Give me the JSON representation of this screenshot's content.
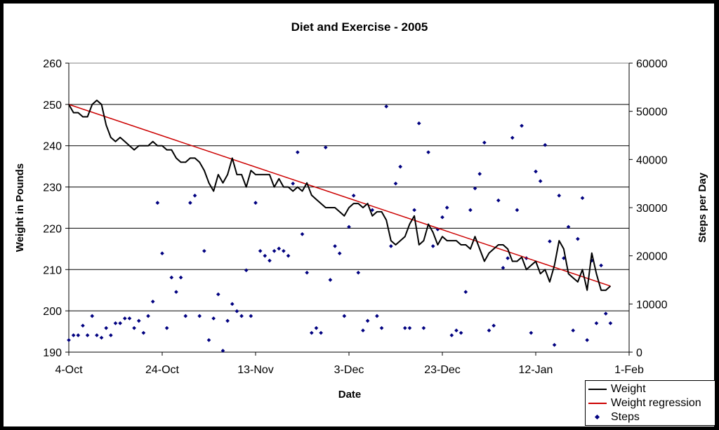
{
  "chart_data": {
    "type": "line",
    "title": "Diet and Exercise - 2005",
    "xlabel": "Date",
    "ylabel": "Weight in Pounds",
    "y2label": "Steps per Day",
    "x_start": "2005-10-04",
    "x_end": "2006-02-01",
    "x_ticks": [
      {
        "date": "2005-10-04",
        "label": "4-Oct"
      },
      {
        "date": "2005-10-24",
        "label": "24-Oct"
      },
      {
        "date": "2005-11-13",
        "label": "13-Nov"
      },
      {
        "date": "2005-12-03",
        "label": "3-Dec"
      },
      {
        "date": "2005-12-23",
        "label": "23-Dec"
      },
      {
        "date": "2006-01-12",
        "label": "12-Jan"
      },
      {
        "date": "2006-02-01",
        "label": "1-Feb"
      }
    ],
    "ylim": [
      190,
      260
    ],
    "y_ticks": [
      "190",
      "200",
      "210",
      "220",
      "230",
      "240",
      "250",
      "260"
    ],
    "y2lim": [
      0,
      60000
    ],
    "y2_ticks": [
      "0",
      "10000",
      "20000",
      "30000",
      "40000",
      "50000",
      "60000"
    ],
    "grid": true,
    "legend_position": "bottom-right",
    "colors": {
      "weight": "#000000",
      "regression": "#cc0000",
      "steps": "#000080"
    },
    "series": [
      {
        "name": "Weight",
        "axis": "left",
        "points": [
          [
            "2005-10-04",
            250
          ],
          [
            "2005-10-05",
            248
          ],
          [
            "2005-10-06",
            248
          ],
          [
            "2005-10-07",
            247
          ],
          [
            "2005-10-08",
            247
          ],
          [
            "2005-10-09",
            250
          ],
          [
            "2005-10-10",
            251
          ],
          [
            "2005-10-11",
            250
          ],
          [
            "2005-10-12",
            245
          ],
          [
            "2005-10-13",
            242
          ],
          [
            "2005-10-14",
            241
          ],
          [
            "2005-10-15",
            242
          ],
          [
            "2005-10-16",
            241
          ],
          [
            "2005-10-17",
            240
          ],
          [
            "2005-10-18",
            239
          ],
          [
            "2005-10-19",
            240
          ],
          [
            "2005-10-20",
            240
          ],
          [
            "2005-10-21",
            240
          ],
          [
            "2005-10-22",
            241
          ],
          [
            "2005-10-23",
            240
          ],
          [
            "2005-10-24",
            240
          ],
          [
            "2005-10-25",
            239
          ],
          [
            "2005-10-26",
            239
          ],
          [
            "2005-10-27",
            237
          ],
          [
            "2005-10-28",
            236
          ],
          [
            "2005-10-29",
            236
          ],
          [
            "2005-10-30",
            237
          ],
          [
            "2005-10-31",
            237
          ],
          [
            "2005-11-01",
            236
          ],
          [
            "2005-11-02",
            234
          ],
          [
            "2005-11-03",
            231
          ],
          [
            "2005-11-04",
            229
          ],
          [
            "2005-11-05",
            233
          ],
          [
            "2005-11-06",
            231
          ],
          [
            "2005-11-07",
            233
          ],
          [
            "2005-11-08",
            237
          ],
          [
            "2005-11-09",
            233
          ],
          [
            "2005-11-10",
            233
          ],
          [
            "2005-11-11",
            230
          ],
          [
            "2005-11-12",
            234
          ],
          [
            "2005-11-13",
            233
          ],
          [
            "2005-11-14",
            233
          ],
          [
            "2005-11-15",
            233
          ],
          [
            "2005-11-16",
            233
          ],
          [
            "2005-11-17",
            230
          ],
          [
            "2005-11-18",
            232
          ],
          [
            "2005-11-19",
            230
          ],
          [
            "2005-11-20",
            230
          ],
          [
            "2005-11-21",
            229
          ],
          [
            "2005-11-22",
            230
          ],
          [
            "2005-11-23",
            229
          ],
          [
            "2005-11-24",
            231
          ],
          [
            "2005-11-25",
            228
          ],
          [
            "2005-11-26",
            227
          ],
          [
            "2005-11-27",
            226
          ],
          [
            "2005-11-28",
            225
          ],
          [
            "2005-11-29",
            225
          ],
          [
            "2005-11-30",
            225
          ],
          [
            "2005-12-01",
            224
          ],
          [
            "2005-12-02",
            223
          ],
          [
            "2005-12-03",
            225
          ],
          [
            "2005-12-04",
            226
          ],
          [
            "2005-12-05",
            226
          ],
          [
            "2005-12-06",
            225
          ],
          [
            "2005-12-07",
            226
          ],
          [
            "2005-12-08",
            223
          ],
          [
            "2005-12-09",
            224
          ],
          [
            "2005-12-10",
            224
          ],
          [
            "2005-12-11",
            222
          ],
          [
            "2005-12-12",
            217
          ],
          [
            "2005-12-13",
            216
          ],
          [
            "2005-12-14",
            217
          ],
          [
            "2005-12-15",
            218
          ],
          [
            "2005-12-16",
            221
          ],
          [
            "2005-12-17",
            223
          ],
          [
            "2005-12-18",
            216
          ],
          [
            "2005-12-19",
            217
          ],
          [
            "2005-12-20",
            221
          ],
          [
            "2005-12-21",
            219
          ],
          [
            "2005-12-22",
            216
          ],
          [
            "2005-12-23",
            218
          ],
          [
            "2005-12-24",
            217
          ],
          [
            "2005-12-25",
            217
          ],
          [
            "2005-12-26",
            217
          ],
          [
            "2005-12-27",
            216
          ],
          [
            "2005-12-28",
            216
          ],
          [
            "2005-12-29",
            215
          ],
          [
            "2005-12-30",
            218
          ],
          [
            "2005-12-31",
            215
          ],
          [
            "2006-01-01",
            212
          ],
          [
            "2006-01-02",
            214
          ],
          [
            "2006-01-03",
            215
          ],
          [
            "2006-01-04",
            216
          ],
          [
            "2006-01-05",
            216
          ],
          [
            "2006-01-06",
            215
          ],
          [
            "2006-01-07",
            212
          ],
          [
            "2006-01-08",
            212
          ],
          [
            "2006-01-09",
            213
          ],
          [
            "2006-01-10",
            210
          ],
          [
            "2006-01-11",
            211
          ],
          [
            "2006-01-12",
            212
          ],
          [
            "2006-01-13",
            209
          ],
          [
            "2006-01-14",
            210
          ],
          [
            "2006-01-15",
            207
          ],
          [
            "2006-01-16",
            211
          ],
          [
            "2006-01-17",
            217
          ],
          [
            "2006-01-18",
            215
          ],
          [
            "2006-01-19",
            209
          ],
          [
            "2006-01-20",
            208
          ],
          [
            "2006-01-21",
            207
          ],
          [
            "2006-01-22",
            210
          ],
          [
            "2006-01-23",
            205
          ],
          [
            "2006-01-24",
            214
          ],
          [
            "2006-01-25",
            209
          ],
          [
            "2006-01-26",
            205
          ],
          [
            "2006-01-27",
            205
          ],
          [
            "2006-01-28",
            206
          ]
        ]
      },
      {
        "name": "Weight regression",
        "axis": "left",
        "points": [
          [
            "2005-10-04",
            250
          ],
          [
            "2006-01-28",
            206
          ]
        ]
      },
      {
        "name": "Steps",
        "axis": "right",
        "points": [
          [
            "2005-10-04",
            2500
          ],
          [
            "2005-10-05",
            3500
          ],
          [
            "2005-10-06",
            3500
          ],
          [
            "2005-10-07",
            5500
          ],
          [
            "2005-10-08",
            3500
          ],
          [
            "2005-10-09",
            7500
          ],
          [
            "2005-10-10",
            3500
          ],
          [
            "2005-10-11",
            3000
          ],
          [
            "2005-10-12",
            5000
          ],
          [
            "2005-10-13",
            3500
          ],
          [
            "2005-10-14",
            6000
          ],
          [
            "2005-10-15",
            6000
          ],
          [
            "2005-10-16",
            7000
          ],
          [
            "2005-10-17",
            7000
          ],
          [
            "2005-10-18",
            5000
          ],
          [
            "2005-10-19",
            6500
          ],
          [
            "2005-10-20",
            4000
          ],
          [
            "2005-10-21",
            7500
          ],
          [
            "2005-10-22",
            10500
          ],
          [
            "2005-10-23",
            31000
          ],
          [
            "2005-10-24",
            20500
          ],
          [
            "2005-10-25",
            5000
          ],
          [
            "2005-10-26",
            15500
          ],
          [
            "2005-10-27",
            12500
          ],
          [
            "2005-10-28",
            15500
          ],
          [
            "2005-10-29",
            7500
          ],
          [
            "2005-10-30",
            31000
          ],
          [
            "2005-10-31",
            32500
          ],
          [
            "2005-11-01",
            7500
          ],
          [
            "2005-11-02",
            21000
          ],
          [
            "2005-11-03",
            2500
          ],
          [
            "2005-11-04",
            7000
          ],
          [
            "2005-11-05",
            12000
          ],
          [
            "2005-11-06",
            300
          ],
          [
            "2005-11-07",
            6500
          ],
          [
            "2005-11-08",
            10000
          ],
          [
            "2005-11-09",
            8500
          ],
          [
            "2005-11-10",
            7500
          ],
          [
            "2005-11-11",
            17000
          ],
          [
            "2005-11-12",
            7500
          ],
          [
            "2005-11-13",
            31000
          ],
          [
            "2005-11-14",
            21000
          ],
          [
            "2005-11-15",
            20000
          ],
          [
            "2005-11-16",
            19000
          ],
          [
            "2005-11-17",
            21000
          ],
          [
            "2005-11-18",
            21500
          ],
          [
            "2005-11-19",
            21000
          ],
          [
            "2005-11-20",
            20000
          ],
          [
            "2005-11-21",
            35000
          ],
          [
            "2005-11-22",
            41500
          ],
          [
            "2005-11-23",
            24500
          ],
          [
            "2005-11-24",
            16500
          ],
          [
            "2005-11-25",
            4000
          ],
          [
            "2005-11-26",
            5000
          ],
          [
            "2005-11-27",
            4000
          ],
          [
            "2005-11-28",
            42500
          ],
          [
            "2005-11-29",
            15000
          ],
          [
            "2005-11-30",
            22000
          ],
          [
            "2005-12-01",
            20500
          ],
          [
            "2005-12-02",
            7500
          ],
          [
            "2005-12-03",
            26000
          ],
          [
            "2005-12-04",
            32500
          ],
          [
            "2005-12-05",
            16500
          ],
          [
            "2005-12-06",
            4500
          ],
          [
            "2005-12-07",
            6500
          ],
          [
            "2005-12-08",
            29500
          ],
          [
            "2005-12-09",
            7500
          ],
          [
            "2005-12-10",
            5000
          ],
          [
            "2005-12-11",
            51000
          ],
          [
            "2005-12-12",
            22000
          ],
          [
            "2005-12-13",
            35000
          ],
          [
            "2005-12-14",
            38500
          ],
          [
            "2005-12-15",
            5000
          ],
          [
            "2005-12-16",
            5000
          ],
          [
            "2005-12-17",
            29500
          ],
          [
            "2005-12-18",
            47500
          ],
          [
            "2005-12-19",
            5000
          ],
          [
            "2005-12-20",
            41500
          ],
          [
            "2005-12-21",
            22000
          ],
          [
            "2005-12-22",
            25500
          ],
          [
            "2005-12-23",
            28000
          ],
          [
            "2005-12-24",
            30000
          ],
          [
            "2005-12-25",
            3500
          ],
          [
            "2005-12-26",
            4500
          ],
          [
            "2005-12-27",
            4000
          ],
          [
            "2005-12-28",
            12500
          ],
          [
            "2005-12-29",
            29500
          ],
          [
            "2005-12-30",
            34000
          ],
          [
            "2005-12-31",
            37000
          ],
          [
            "2006-01-01",
            43500
          ],
          [
            "2006-01-02",
            4500
          ],
          [
            "2006-01-03",
            5500
          ],
          [
            "2006-01-04",
            31500
          ],
          [
            "2006-01-05",
            17500
          ],
          [
            "2006-01-06",
            19500
          ],
          [
            "2006-01-07",
            44500
          ],
          [
            "2006-01-08",
            29500
          ],
          [
            "2006-01-09",
            47000
          ],
          [
            "2006-01-10",
            19500
          ],
          [
            "2006-01-11",
            4000
          ],
          [
            "2006-01-12",
            37500
          ],
          [
            "2006-01-13",
            35500
          ],
          [
            "2006-01-14",
            43000
          ],
          [
            "2006-01-15",
            23000
          ],
          [
            "2006-01-16",
            1500
          ],
          [
            "2006-01-17",
            32500
          ],
          [
            "2006-01-18",
            19500
          ],
          [
            "2006-01-19",
            26000
          ],
          [
            "2006-01-20",
            4500
          ],
          [
            "2006-01-21",
            23500
          ],
          [
            "2006-01-22",
            32000
          ],
          [
            "2006-01-23",
            2500
          ],
          [
            "2006-01-24",
            19000
          ],
          [
            "2006-01-25",
            6000
          ],
          [
            "2006-01-26",
            18000
          ],
          [
            "2006-01-27",
            8000
          ],
          [
            "2006-01-28",
            6000
          ]
        ]
      }
    ]
  }
}
